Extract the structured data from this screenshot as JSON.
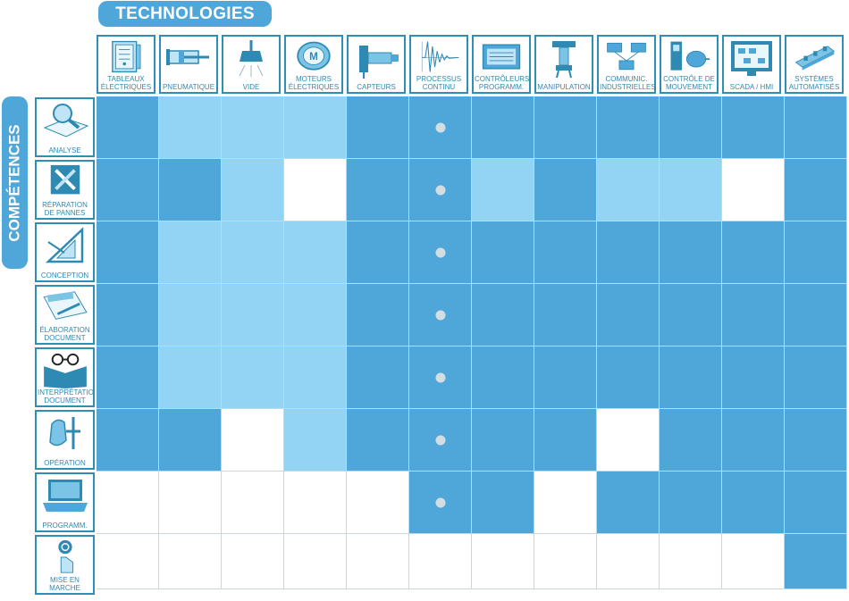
{
  "title_top": "TECHNOLOGIES",
  "title_left": "COMPÉTENCES",
  "colors": {
    "dark": "#4fa6d8",
    "light": "#93d3f4",
    "white": "#ffffff",
    "accent": "#2d8fb4",
    "dot": "#d4dde2"
  },
  "columns": [
    {
      "label": "TABLEAUX\nÉLECTRIQUES",
      "icon": "electrical-panel-icon"
    },
    {
      "label": "PNEUMATIQUE",
      "icon": "pneumatic-cylinder-icon"
    },
    {
      "label": "VIDE",
      "icon": "vacuum-suction-cup-icon"
    },
    {
      "label": "MOTEURS\nÉLECTRIQUES",
      "icon": "electric-motor-icon"
    },
    {
      "label": "CAPTEURS",
      "icon": "sensor-icon"
    },
    {
      "label": "PROCESSUS\nCONTINU",
      "icon": "waveform-icon"
    },
    {
      "label": "CONTRÔLEURS\nPROGRAMM.",
      "icon": "plc-controller-icon"
    },
    {
      "label": "MANIPULATION",
      "icon": "manipulator-arm-icon"
    },
    {
      "label": "COMMUNIC.\nINDUSTRIELLES",
      "icon": "network-modules-icon"
    },
    {
      "label": "CONTRÔLE DE\nMOUVEMENT",
      "icon": "servo-drive-motor-icon"
    },
    {
      "label": "SCADA / HMI",
      "icon": "hmi-screen-icon"
    },
    {
      "label": "SYSTÈMES\nAUTOMATISÉS",
      "icon": "automated-system-icon"
    }
  ],
  "rows": [
    {
      "label": "ANALYSE",
      "icon": "magnifier-book-icon"
    },
    {
      "label": "RÉPARATION\nDE PANNES",
      "icon": "repair-tools-icon"
    },
    {
      "label": "CONCEPTION",
      "icon": "design-square-icon"
    },
    {
      "label": "ÉLABORATION\nDOCUMENT",
      "icon": "writing-document-icon"
    },
    {
      "label": "INTERPRÉTATION\nDOCUMENT",
      "icon": "reading-glasses-icon"
    },
    {
      "label": "OPÉRATION",
      "icon": "hand-operating-icon"
    },
    {
      "label": "PROGRAMM.",
      "icon": "laptop-programming-icon"
    },
    {
      "label": "MISE EN\nMARCHE",
      "icon": "power-button-icon"
    }
  ],
  "matrix": [
    [
      "D",
      "L",
      "L",
      "L",
      "D",
      "D",
      "D",
      "D",
      "D",
      "D",
      "D",
      "D"
    ],
    [
      "D",
      "D",
      "L",
      "W",
      "D",
      "D",
      "L",
      "D",
      "L",
      "L",
      "W",
      "D"
    ],
    [
      "D",
      "L",
      "L",
      "L",
      "D",
      "D",
      "D",
      "D",
      "D",
      "D",
      "D",
      "D"
    ],
    [
      "D",
      "L",
      "L",
      "L",
      "D",
      "D",
      "D",
      "D",
      "D",
      "D",
      "D",
      "D"
    ],
    [
      "D",
      "L",
      "L",
      "L",
      "D",
      "D",
      "D",
      "D",
      "D",
      "D",
      "D",
      "D"
    ],
    [
      "D",
      "D",
      "W",
      "L",
      "D",
      "D",
      "D",
      "D",
      "W",
      "D",
      "D",
      "D"
    ],
    [
      "W",
      "W",
      "W",
      "W",
      "W",
      "D",
      "D",
      "W",
      "D",
      "D",
      "D",
      "D"
    ],
    [
      "W",
      "W",
      "W",
      "W",
      "W",
      "W",
      "W",
      "W",
      "W",
      "W",
      "W",
      "D"
    ]
  ],
  "dots": [
    [
      0,
      5
    ],
    [
      1,
      5
    ],
    [
      2,
      5
    ],
    [
      3,
      5
    ],
    [
      4,
      5
    ],
    [
      5,
      5
    ],
    [
      6,
      5
    ]
  ]
}
